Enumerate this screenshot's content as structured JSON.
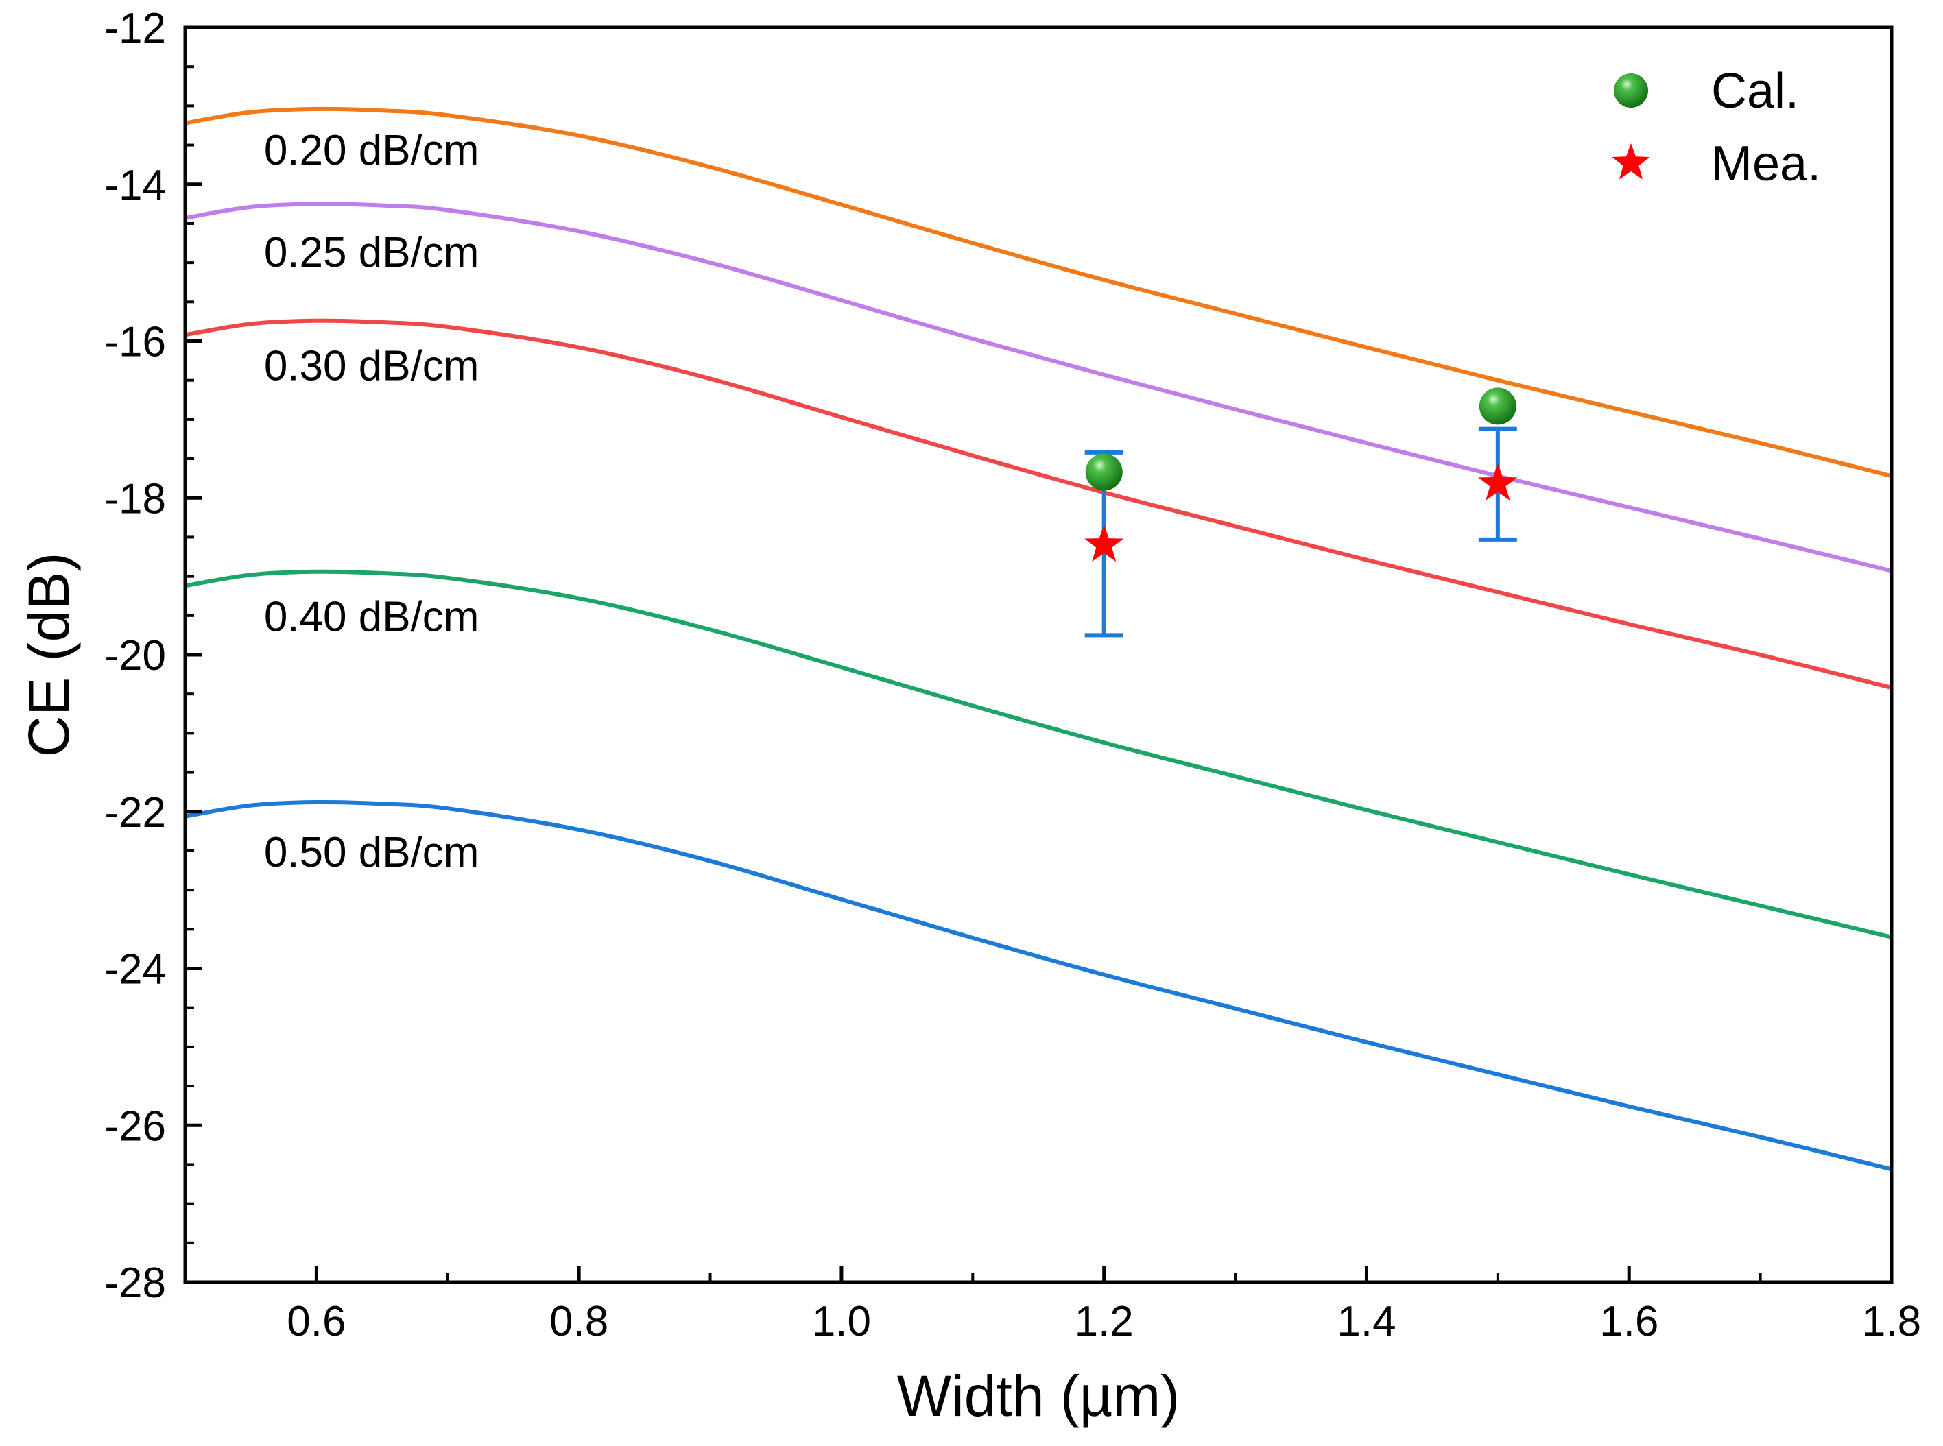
{
  "chart_data": {
    "type": "line",
    "title": "",
    "xlabel": "Width (µm)",
    "ylabel": "CE (dB)",
    "xlim": [
      0.5,
      1.8
    ],
    "ylim": [
      -28,
      -12
    ],
    "xticks": [
      0.6,
      0.8,
      1.0,
      1.2,
      1.4,
      1.6,
      1.8
    ],
    "xtick_labels": [
      "0.6",
      "0.8",
      "1.0",
      "1.2",
      "1.4",
      "1.6",
      "1.8"
    ],
    "yticks": [
      -28,
      -26,
      -24,
      -22,
      -20,
      -18,
      -16,
      -14,
      -12
    ],
    "ytick_labels": [
      "-28",
      "-26",
      "-24",
      "-22",
      "-20",
      "-18",
      "-16",
      "-14",
      "-12"
    ],
    "grid": false,
    "x": [
      0.5,
      0.55,
      0.6,
      0.65,
      0.7,
      0.8,
      0.9,
      1.0,
      1.1,
      1.2,
      1.3,
      1.4,
      1.5,
      1.6,
      1.7,
      1.8
    ],
    "series": [
      {
        "label": "0.20 dB/cm",
        "color": "#f07a1a",
        "values": [
          -13.22,
          -13.08,
          -13.04,
          -13.06,
          -13.12,
          -13.38,
          -13.78,
          -14.26,
          -14.75,
          -15.22,
          -15.65,
          -16.08,
          -16.5,
          -16.9,
          -17.3,
          -17.72
        ]
      },
      {
        "label": "0.25 dB/cm",
        "color": "#c07ee8",
        "values": [
          -14.43,
          -14.29,
          -14.25,
          -14.27,
          -14.33,
          -14.6,
          -15.0,
          -15.48,
          -15.97,
          -16.43,
          -16.87,
          -17.3,
          -17.72,
          -18.12,
          -18.52,
          -18.93
        ]
      },
      {
        "label": "0.30 dB/cm",
        "color": "#f04848",
        "values": [
          -15.92,
          -15.78,
          -15.74,
          -15.76,
          -15.82,
          -16.08,
          -16.48,
          -16.97,
          -17.46,
          -17.93,
          -18.36,
          -18.79,
          -19.2,
          -19.61,
          -20.0,
          -20.42
        ]
      },
      {
        "label": "0.40 dB/cm",
        "color": "#1da46a",
        "values": [
          -19.12,
          -18.98,
          -18.94,
          -18.96,
          -19.02,
          -19.28,
          -19.68,
          -20.16,
          -20.65,
          -21.12,
          -21.55,
          -21.98,
          -22.39,
          -22.8,
          -23.2,
          -23.6
        ]
      },
      {
        "label": "0.50 dB/cm",
        "color": "#1e7ad8",
        "values": [
          -22.06,
          -21.92,
          -21.88,
          -21.9,
          -21.96,
          -22.23,
          -22.63,
          -23.12,
          -23.61,
          -24.08,
          -24.51,
          -24.94,
          -25.35,
          -25.76,
          -26.15,
          -26.56
        ]
      }
    ],
    "curve_label_x": 0.56,
    "curve_label_y": [
      -13.75,
      -15.05,
      -16.5,
      -19.7,
      -22.7
    ],
    "points": {
      "calculated": {
        "name": "Cal.",
        "color": "#1a8a1a",
        "x": [
          1.2,
          1.5
        ],
        "y": [
          -17.67,
          -16.83
        ]
      },
      "measured": {
        "name": "Mea.",
        "color": "#ff0000",
        "x": [
          1.2,
          1.5
        ],
        "y": [
          -18.6,
          -17.82
        ],
        "err_low": [
          -19.75,
          -18.53
        ],
        "err_high": [
          -17.42,
          -17.12
        ],
        "error_color": "#1e7ad8"
      }
    },
    "legend": {
      "position": "top-right",
      "entries": [
        "Cal.",
        "Mea."
      ]
    }
  }
}
